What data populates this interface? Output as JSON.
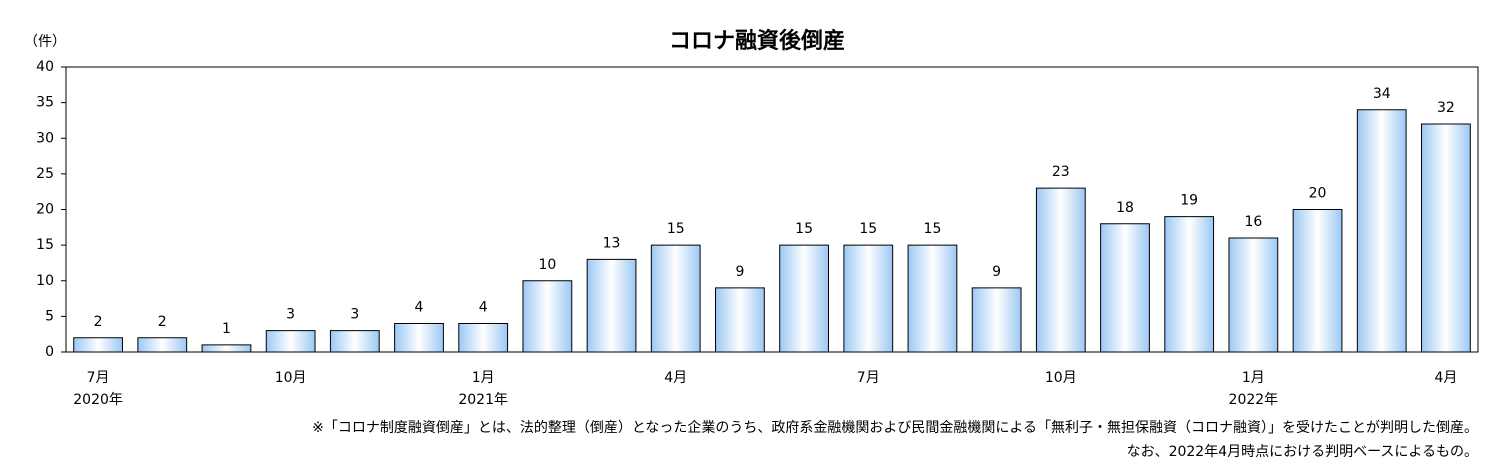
{
  "chart_data": {
    "type": "bar",
    "title": "コロナ融資後倒産",
    "y_label": "（件）",
    "categories": [
      "7月",
      null,
      null,
      "10月",
      null,
      null,
      "1月",
      null,
      null,
      "4月",
      null,
      null,
      "7月",
      null,
      null,
      "10月",
      null,
      null,
      "1月",
      null,
      null,
      "4月"
    ],
    "category_groups": [
      "2020年",
      null,
      null,
      null,
      null,
      null,
      "2021年",
      null,
      null,
      null,
      null,
      null,
      null,
      null,
      null,
      null,
      null,
      null,
      "2022年",
      null,
      null,
      null
    ],
    "values": [
      2,
      2,
      1,
      3,
      3,
      4,
      4,
      10,
      13,
      15,
      9,
      15,
      15,
      15,
      9,
      23,
      18,
      19,
      16,
      20,
      34,
      32
    ],
    "color": "#9cc8f4",
    "ylim": [
      0,
      40
    ],
    "yticks": [
      0,
      5,
      10,
      15,
      20,
      25,
      30,
      35,
      40
    ],
    "grid": false,
    "notes": [
      "※「コロナ制度融資倒産」とは、法的整理（倒産）となった企業のうち、政府系金融機関および民間金融機関による「無利子・無担保融資（コロナ融資）」を受けたことが判明した倒産。",
      "なお、2022年4月時点における判明ベースによるもの。"
    ]
  }
}
